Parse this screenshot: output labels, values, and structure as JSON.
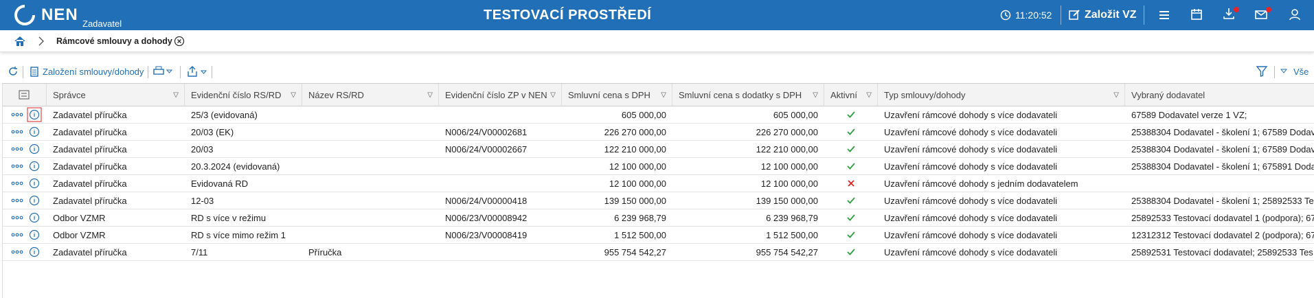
{
  "header": {
    "logo": "NEN",
    "role": "Zadavatel",
    "environment": "TESTOVACÍ PROSTŘEDÍ",
    "time": "11:20:52",
    "create_button": "Založit VZ"
  },
  "breadcrumb": {
    "title": "Rámcové smlouvy a dohody"
  },
  "toolbar": {
    "create": "Založení smlouvy/dohody",
    "filter_all": "Vše"
  },
  "table": {
    "columns": [
      "Správce",
      "Evidenční číslo RS/RD",
      "Název RS/RD",
      "Evidenční číslo ZP v NEN",
      "Smluvní cena s DPH",
      "Smluvní cena s dodatky s DPH",
      "Aktivní",
      "Typ smlouvy/dohody",
      "Vybraný dodavatel"
    ],
    "rows": [
      [
        "Zadavatel příručka",
        "25/3 (evidovaná)",
        null,
        null,
        "605 000,00",
        "605 000,00",
        true,
        "Uzavření rámcové dohody s více dodavateli",
        "67589 Dodavatel verze 1 VZ;"
      ],
      [
        "Zadavatel příručka",
        "20/03 (EK)",
        null,
        "N006/24/V00002681",
        "226 270 000,00",
        "226 270 000,00",
        true,
        "Uzavření rámcové dohody s více dodavateli",
        "25388304 Dodavatel - školení 1; 67589 Dodav"
      ],
      [
        "Zadavatel příručka",
        "20/03",
        null,
        "N006/24/V00002667",
        "122 210 000,00",
        "122 210 000,00",
        true,
        "Uzavření rámcové dohody s více dodavateli",
        "25388304 Dodavatel - školení 1; 67589 Dodav"
      ],
      [
        "Zadavatel příručka",
        "20.3.2024 (evidovaná)",
        null,
        null,
        "12 100 000,00",
        "12 100 000,00",
        true,
        "Uzavření rámcové dohody s více dodavateli",
        "25388304 Dodavatel - školení 1; 675891 Doda"
      ],
      [
        "Zadavatel příručka",
        "Evidovaná RD",
        null,
        null,
        "12 100 000,00",
        "12 100 000,00",
        false,
        "Uzavření rámcové dohody s jedním dodavatelem",
        null
      ],
      [
        "Zadavatel příručka",
        "12-03",
        null,
        "N006/24/V00000418",
        "139 150 000,00",
        "139 150 000,00",
        true,
        "Uzavření rámcové dohody s více dodavateli",
        "25388304 Dodavatel - školení 1; 25892533 Tes"
      ],
      [
        "Odbor VZMR",
        "RD s více v režimu",
        null,
        "N006/23/V00008942",
        "6 239 968,79",
        "6 239 968,79",
        true,
        "Uzavření rámcové dohody s více dodavateli",
        "25892533 Testovací dodavatel 1 (podpora); 67"
      ],
      [
        "Odbor VZMR",
        "RD s více mimo režim 1",
        null,
        "N006/23/V00008419",
        "1 512 500,00",
        "1 512 500,00",
        true,
        "Uzavření rámcové dohody s více dodavateli",
        "12312312 Testovací dodavatel 2 (podpora); 67"
      ],
      [
        "Zadavatel příručka",
        "7/11",
        "Příručka",
        null,
        "955 754 542,27",
        "955 754 542,27",
        true,
        "Uzavření rámcové dohody s více dodavateli",
        "25892531 Testovací dodavatel; 25892533 Tes"
      ]
    ]
  }
}
